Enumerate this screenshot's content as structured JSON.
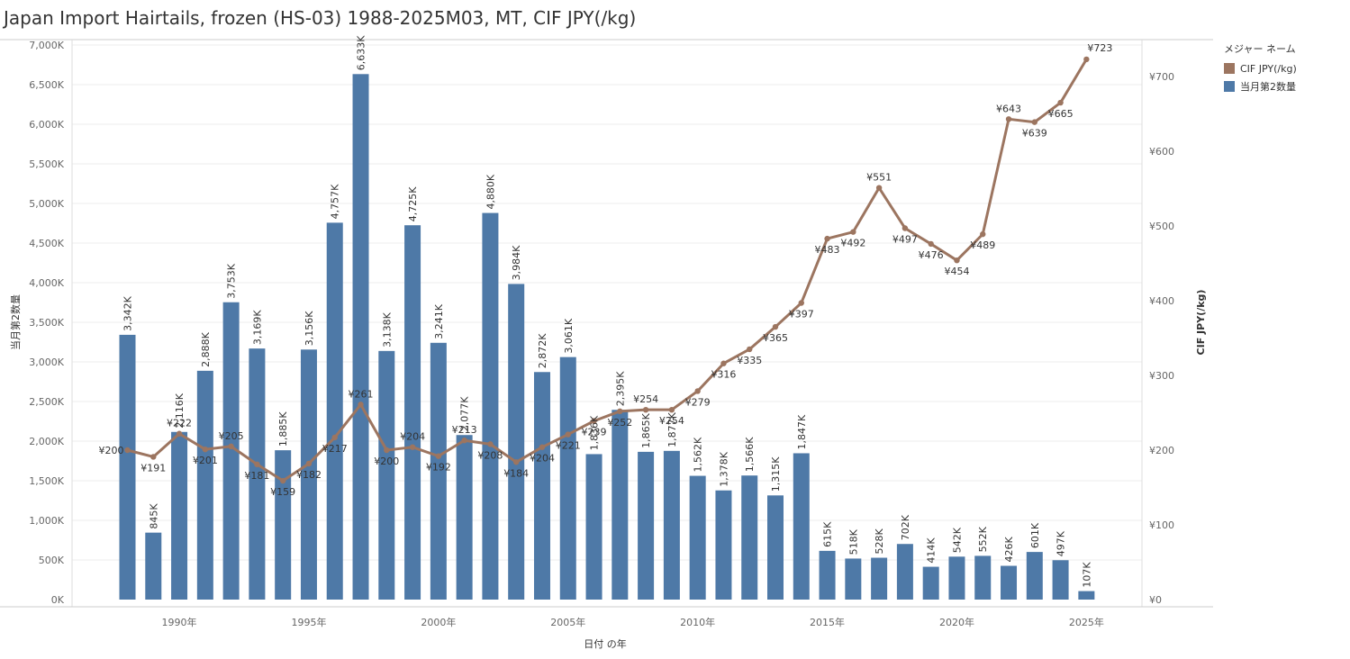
{
  "title": "Japan Import Hairtails, frozen (HS-03) 1988-2025M03, MT, CIF JPY(/kg)",
  "legend": {
    "title": "メジャー ネーム",
    "items": [
      {
        "label": "CIF JPY(/kg)",
        "color": "#9c7560"
      },
      {
        "label": "当月第2数量",
        "color": "#4e79a7"
      }
    ]
  },
  "chart_data": {
    "type": "bar+line",
    "xlabel": "日付 の年",
    "ylabel_left": "当月第2数量",
    "ylabel_right": "CIF JPY(/kg)",
    "ylim_left": [
      0,
      7000
    ],
    "ylim_right": [
      0,
      750
    ],
    "left_ticks": [
      "0K",
      "500K",
      "1,000K",
      "1,500K",
      "2,000K",
      "2,500K",
      "3,000K",
      "3,500K",
      "4,000K",
      "4,500K",
      "5,000K",
      "5,500K",
      "6,000K",
      "6,500K",
      "7,000K"
    ],
    "right_ticks": [
      "¥0",
      "¥100",
      "¥200",
      "¥300",
      "¥400",
      "¥500",
      "¥600",
      "¥700"
    ],
    "x_ticks": [
      "1990年",
      "1995年",
      "2000年",
      "2005年",
      "2010年",
      "2015年",
      "2020年",
      "2025年"
    ],
    "x_tick_years": [
      1990,
      1995,
      2000,
      2005,
      2010,
      2015,
      2020,
      2025
    ],
    "years": [
      1988,
      1989,
      1990,
      1991,
      1992,
      1993,
      1994,
      1995,
      1996,
      1997,
      1998,
      1999,
      2000,
      2001,
      2002,
      2003,
      2004,
      2005,
      2006,
      2007,
      2008,
      2009,
      2010,
      2011,
      2012,
      2013,
      2014,
      2015,
      2016,
      2017,
      2018,
      2019,
      2020,
      2021,
      2022,
      2023,
      2024,
      2025
    ],
    "series": [
      {
        "name": "当月第2数量",
        "axis": "left",
        "color": "#4e79a7",
        "values": [
          3342,
          845,
          2116,
          2888,
          3753,
          3169,
          1885,
          3156,
          4757,
          6633,
          3138,
          4725,
          3241,
          2077,
          4880,
          3984,
          2872,
          3061,
          1836,
          2395,
          1865,
          1877,
          1562,
          1378,
          1566,
          1315,
          1847,
          615,
          518,
          528,
          702,
          414,
          542,
          552,
          426,
          601,
          497,
          107
        ],
        "labels": [
          "3,342K",
          "845K",
          "2,116K",
          "2,888K",
          "3,753K",
          "3,169K",
          "1,885K",
          "3,156K",
          "4,757K",
          "6,633K",
          "3,138K",
          "4,725K",
          "3,241K",
          "2,077K",
          "4,880K",
          "3,984K",
          "2,872K",
          "3,061K",
          "1,836K",
          "2,395K",
          "1,865K",
          "1,877K",
          "1,562K",
          "1,378K",
          "1,566K",
          "1,315K",
          "1,847K",
          "615K",
          "518K",
          "528K",
          "702K",
          "414K",
          "542K",
          "552K",
          "426K",
          "601K",
          "497K",
          "107K"
        ]
      },
      {
        "name": "CIF JPY(/kg)",
        "axis": "right",
        "color": "#9c7560",
        "values": [
          200,
          191,
          222,
          201,
          205,
          181,
          159,
          182,
          217,
          261,
          200,
          204,
          192,
          213,
          208,
          184,
          204,
          221,
          239,
          252,
          254,
          254,
          279,
          316,
          335,
          365,
          397,
          483,
          492,
          551,
          497,
          476,
          454,
          489,
          643,
          639,
          665,
          723
        ],
        "labels": [
          "¥200",
          "¥191",
          "¥222",
          "¥201",
          "¥205",
          "¥181",
          "¥159",
          "¥182",
          "¥217",
          "¥261",
          "¥200",
          "¥204",
          "¥192",
          "¥213",
          "¥208",
          "¥184",
          "¥204",
          "¥221",
          "¥239",
          "¥252",
          "¥254",
          "¥254",
          "¥279",
          "¥316",
          "¥335",
          "¥365",
          "¥397",
          "¥483",
          "¥492",
          "¥551",
          "¥497",
          "¥476",
          "¥454",
          "¥489",
          "¥643",
          "¥639",
          "¥665",
          "¥723"
        ]
      }
    ]
  }
}
